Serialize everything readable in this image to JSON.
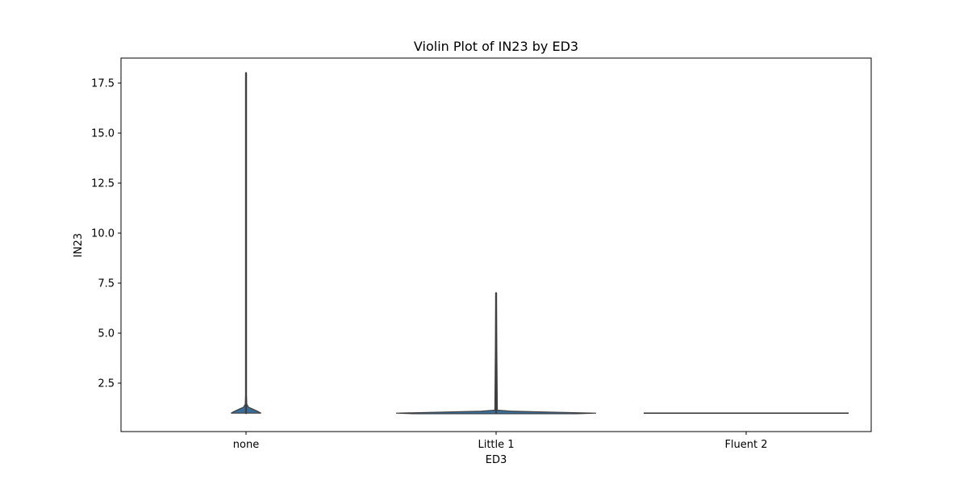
{
  "chart_data": {
    "type": "violin",
    "title": "Violin Plot of IN23 by ED3",
    "xlabel": "ED3",
    "ylabel": "IN23",
    "categories": [
      "none",
      "Little 1",
      "Fluent 2"
    ],
    "ylim": [
      0.08,
      18.75
    ],
    "yticks": [
      2.5,
      5.0,
      7.5,
      10.0,
      12.5,
      15.0,
      17.5
    ],
    "ytick_labels": [
      "2.5",
      "5.0",
      "7.5",
      "10.0",
      "12.5",
      "15.0",
      "17.5"
    ],
    "grid": false,
    "violins": [
      {
        "category": "none",
        "min": 1.0,
        "max": 18.0,
        "median": 1.0,
        "profile": [
          [
            1.0,
            0.12
          ],
          [
            1.1,
            0.09
          ],
          [
            1.2,
            0.055
          ],
          [
            1.3,
            0.02
          ],
          [
            1.45,
            0.006
          ],
          [
            2.0,
            0.002
          ],
          [
            18.0,
            0.002
          ]
        ]
      },
      {
        "category": "Little 1",
        "min": 1.0,
        "max": 7.0,
        "median": 1.0,
        "profile": [
          [
            0.97,
            0.65
          ],
          [
            1.0,
            0.8
          ],
          [
            1.05,
            0.45
          ],
          [
            1.1,
            0.12
          ],
          [
            1.15,
            0.01
          ],
          [
            7.0,
            0.002
          ]
        ]
      },
      {
        "category": "Fluent 2",
        "min": 1.0,
        "max": 1.0,
        "median": 1.0,
        "profile": [
          [
            1.0,
            0.82
          ]
        ]
      }
    ],
    "colors": {
      "fill": "#3b6d99",
      "edge": "#3f3f3f",
      "axes": "#000000"
    }
  }
}
